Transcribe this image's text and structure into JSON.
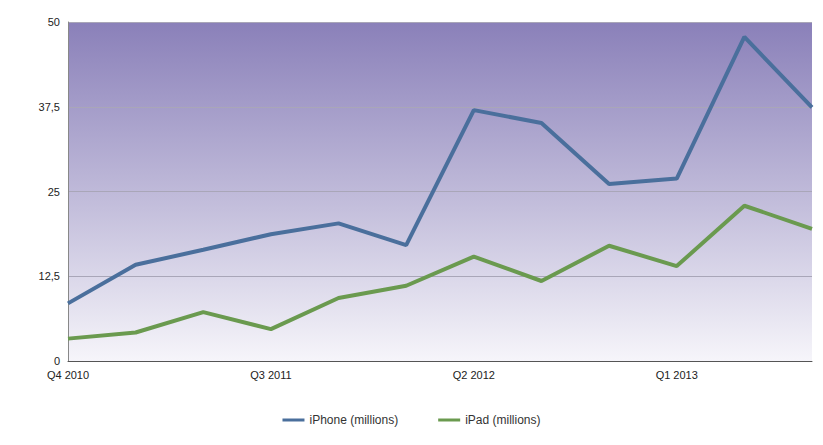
{
  "chart_data": {
    "type": "line",
    "categories": [
      "Q4 2010",
      null,
      null,
      "Q3 2011",
      null,
      null,
      "Q2 2012",
      null,
      null,
      "Q1 2013",
      null,
      null
    ],
    "series": [
      {
        "name": "iPhone (millions)",
        "color": "#4a6f9c",
        "values": [
          8.5,
          14.2,
          16.4,
          18.7,
          20.3,
          17.1,
          37.0,
          35.1,
          26.1,
          26.9,
          47.8,
          37.4
        ]
      },
      {
        "name": "iPad (millions)",
        "color": "#6a9a4f",
        "values": [
          3.3,
          4.2,
          7.2,
          4.7,
          9.3,
          11.1,
          15.4,
          11.8,
          17.0,
          14.0,
          22.9,
          19.5
        ]
      }
    ],
    "ylim": [
      0,
      50
    ],
    "yticks": [
      0,
      {
        "value": 12.5,
        "label": "12,5"
      },
      25,
      {
        "value": 37.5,
        "label": "37,5"
      },
      50
    ],
    "grid": true,
    "legend": "bottom"
  }
}
